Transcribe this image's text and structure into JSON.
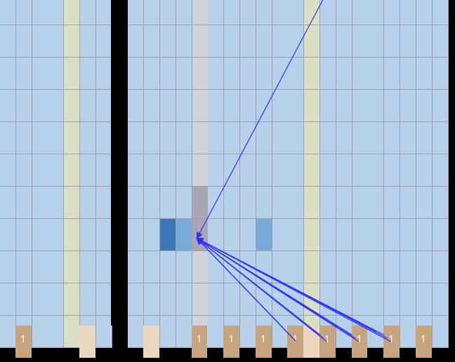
{
  "colors": {
    "empty": "#b8d1ea",
    "grid_line": "#9aa3ad",
    "wall": "#000000",
    "cream_column": "#d9e0c4",
    "gray_column": "#d3d1da",
    "highlight_gray": "#aba6b4",
    "dark_blue": "#3a78b8",
    "light_blue": "#7aaad9",
    "cap_tan": "#c8a47e",
    "cap_cream": "#ead7bf",
    "arrow": "#3030ff"
  },
  "grid": {
    "columns": 28,
    "rows": 11
  },
  "cap_glyph": "↿",
  "caps": [
    {
      "col": 1,
      "kind": "tan",
      "glyph": true
    },
    {
      "col": 5,
      "kind": "cream",
      "glyph": false
    },
    {
      "col": 9,
      "kind": "cream",
      "glyph": false
    },
    {
      "col": 12,
      "kind": "tan",
      "glyph": true
    },
    {
      "col": 14,
      "kind": "tan",
      "glyph": true
    },
    {
      "col": 16,
      "kind": "tan",
      "glyph": true
    },
    {
      "col": 18,
      "kind": "tan",
      "glyph": true
    },
    {
      "col": 19,
      "kind": "cream",
      "glyph": false
    },
    {
      "col": 20,
      "kind": "tan",
      "glyph": true
    },
    {
      "col": 22,
      "kind": "tan",
      "glyph": true
    },
    {
      "col": 24,
      "kind": "tan",
      "glyph": true
    },
    {
      "col": 26,
      "kind": "tan",
      "glyph": true
    }
  ],
  "special_cells": [
    {
      "col": 12,
      "row": 6,
      "kind": "highlight_gray"
    },
    {
      "col": 12,
      "row": 7,
      "kind": "highlight_gray"
    },
    {
      "col": 10,
      "row": 7,
      "kind": "dark_blue"
    },
    {
      "col": 11,
      "row": 7,
      "kind": "light_blue"
    },
    {
      "col": 16,
      "row": 7,
      "kind": "light_blue"
    }
  ],
  "column_tints": [
    {
      "col": 4,
      "kind": "cream_column"
    },
    {
      "col": 12,
      "kind": "gray_column"
    },
    {
      "col": 19,
      "kind": "cream_column"
    }
  ],
  "wall_column": 7,
  "arrows": {
    "target": {
      "col": 12.3,
      "row": 7.6
    },
    "sources": [
      {
        "col": 20.5,
        "row": -0.1
      },
      {
        "col": 18.5,
        "row": 10.8
      },
      {
        "col": 18.3,
        "row": 10.7
      },
      {
        "col": 18.1,
        "row": 10.6
      },
      {
        "col": 20.4,
        "row": 10.8
      },
      {
        "col": 20.2,
        "row": 10.7
      },
      {
        "col": 20.0,
        "row": 10.6
      },
      {
        "col": 22.4,
        "row": 10.8
      },
      {
        "col": 22.2,
        "row": 10.7
      },
      {
        "col": 22.0,
        "row": 10.6
      },
      {
        "col": 24.4,
        "row": 10.8
      },
      {
        "col": 24.2,
        "row": 10.7
      },
      {
        "col": 24.0,
        "row": 10.6
      },
      {
        "col": 23.5,
        "row": 10.5
      }
    ]
  }
}
